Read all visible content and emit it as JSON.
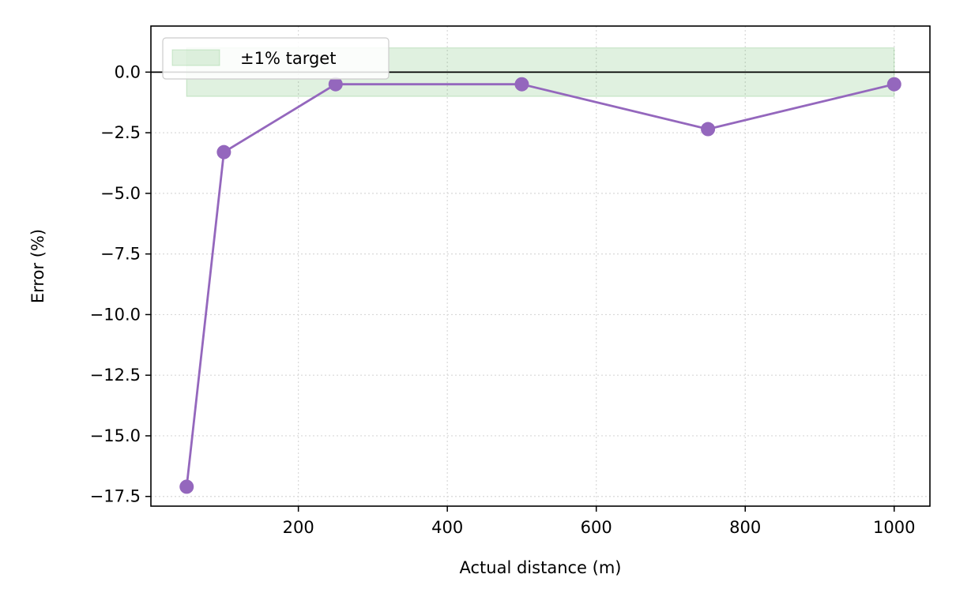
{
  "chart_data": {
    "type": "line",
    "title": "",
    "xlabel": "Actual distance (m)",
    "ylabel": "Error (%)",
    "xlim": [
      2,
      1048
    ],
    "ylim": [
      -17.9,
      1.9
    ],
    "xticks": [
      200,
      400,
      600,
      800,
      1000
    ],
    "yticks": [
      0.0,
      -2.5,
      -5.0,
      -7.5,
      -10.0,
      -12.5,
      -15.0,
      -17.5
    ],
    "xtick_labels": [
      "200",
      "400",
      "600",
      "800",
      "1000"
    ],
    "ytick_labels": [
      "0.0",
      "−2.5",
      "−5.0",
      "−7.5",
      "−10.0",
      "−12.5",
      "−15.0",
      "−17.5"
    ],
    "grid": true,
    "series": [
      {
        "x": [
          50,
          100,
          250,
          500,
          750,
          1000
        ],
        "values": [
          -17.1,
          -3.3,
          -0.5,
          -0.5,
          -2.35,
          -0.5
        ],
        "color": "#9467bd",
        "marker": "circle"
      }
    ],
    "band": {
      "label": "±1% target",
      "x_range": [
        50,
        1000
      ],
      "y_range": [
        -1,
        1
      ],
      "color": "#2ca02c",
      "opacity": 0.15
    },
    "reference_line": {
      "y": 0,
      "color": "#000000"
    },
    "legend": {
      "position": "top-left",
      "entries": [
        "±1% target"
      ]
    }
  }
}
